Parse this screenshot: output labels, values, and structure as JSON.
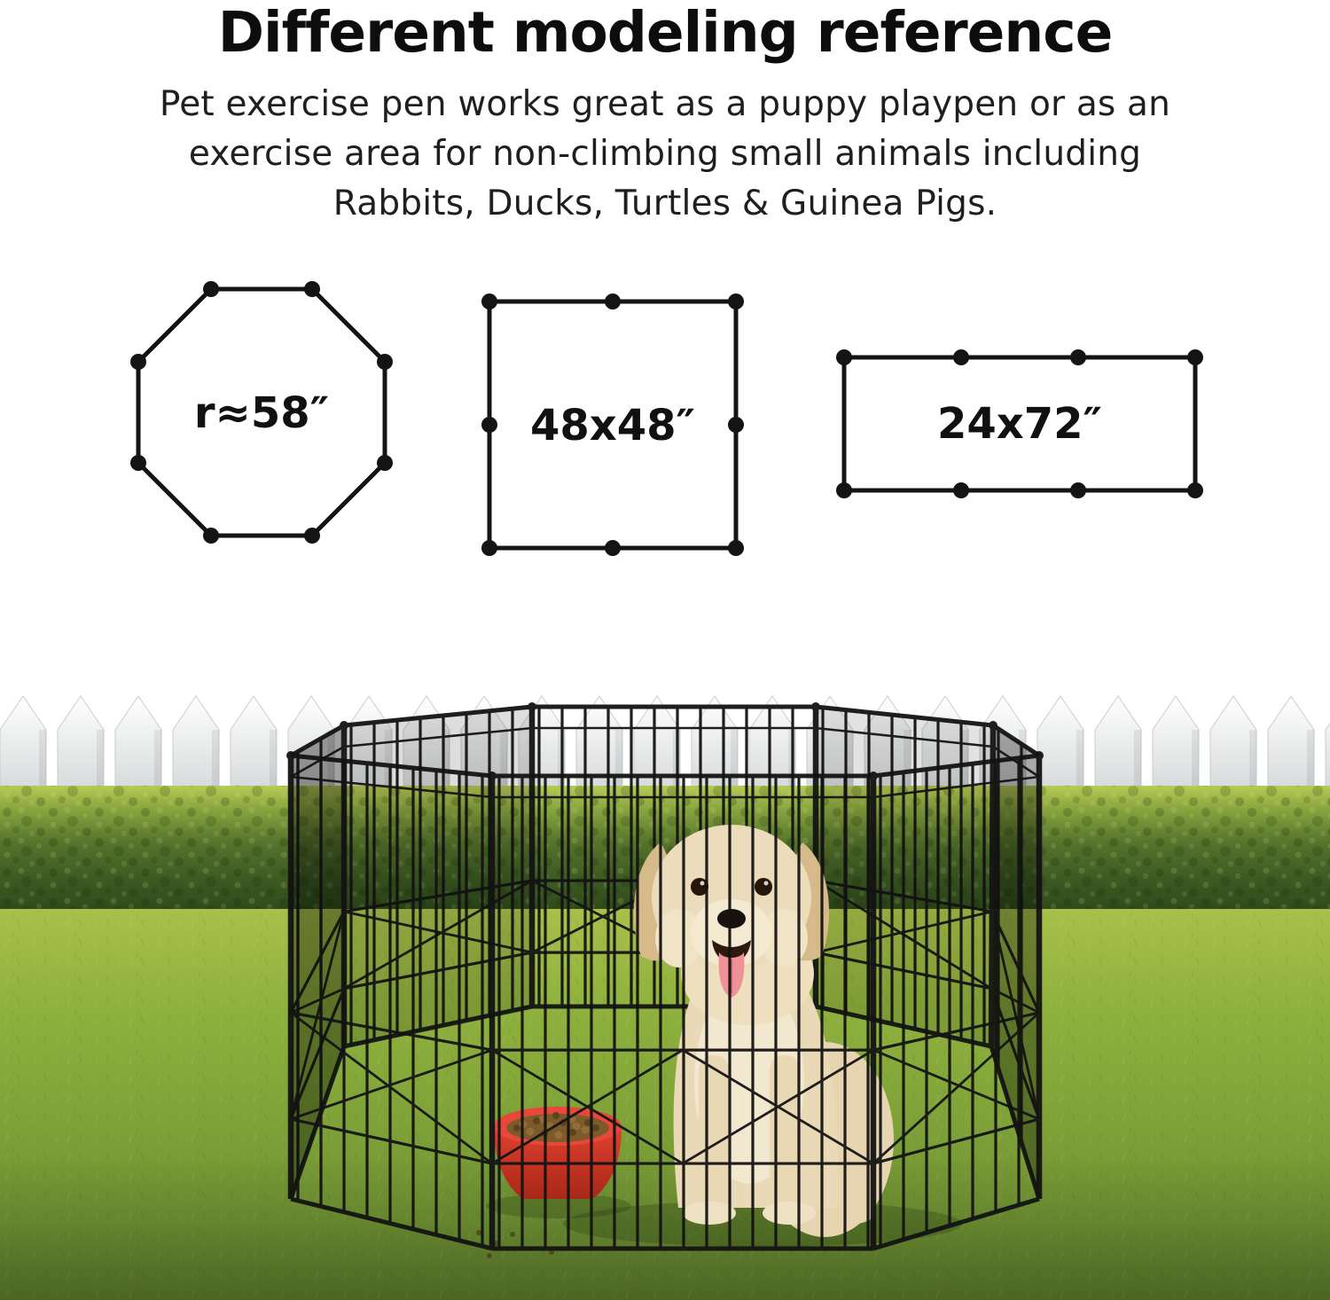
{
  "header": {
    "title": "Different modeling reference",
    "subtitle_lines": [
      "Pet exercise pen works great as a puppy playpen or as an",
      "exercise area for non-climbing small animals including",
      "Rabbits, Ducks, Turtles & Guinea Pigs."
    ]
  },
  "diagrams": {
    "octagon": {
      "label": "r≈58″",
      "shape": "octagon",
      "dot_count": 8
    },
    "square": {
      "label": "48x48″",
      "shape": "square",
      "dot_count": 8
    },
    "rectangle": {
      "label": "24x72″",
      "shape": "rectangle",
      "dot_count": 8
    }
  },
  "photo": {
    "description": "Golden retriever sitting inside a black wire 8-panel octagon exercise pen on a lawn, white picket fence and green hedge behind, red bowl of kibble on the grass",
    "colors": {
      "sky": "#ffffff",
      "fence": "#e9ebec",
      "hedge": "#4e6c28",
      "grass": "#84a737",
      "pen_wire": "#141414",
      "dog_coat": "#ead9b6",
      "bowl": "#d63829",
      "kibble": "#7c5a2a",
      "tongue": "#ee8b94",
      "text": "#111111"
    }
  }
}
